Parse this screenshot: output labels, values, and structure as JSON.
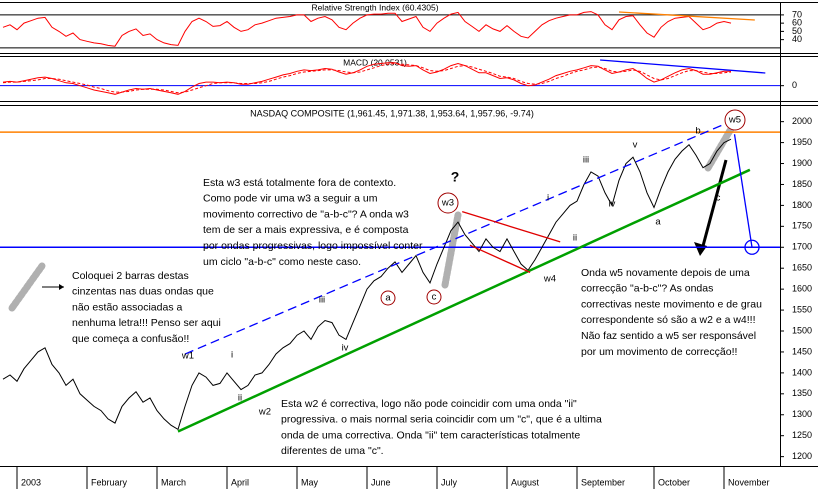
{
  "chart_data": [
    {
      "type": "line",
      "title": "Relative Strength Index (60.4305)",
      "series": [
        {
          "color": "#ff0000",
          "values": [
            55,
            58,
            52,
            60,
            63,
            66,
            67,
            55,
            50,
            44,
            48,
            40,
            38,
            36,
            35,
            33,
            32,
            45,
            50,
            53,
            45,
            47,
            40,
            36,
            34,
            33,
            50,
            62,
            66,
            62,
            56,
            57,
            62,
            55,
            50,
            52,
            58,
            60,
            63,
            66,
            67,
            68,
            70,
            70,
            62,
            66,
            68,
            64,
            55,
            52,
            60,
            66,
            70,
            71,
            71,
            72,
            72,
            62,
            65,
            68,
            55,
            50,
            60,
            66,
            71,
            73,
            62,
            56,
            50,
            58,
            53,
            50,
            57,
            50,
            44,
            42,
            50,
            58,
            63,
            66,
            68,
            70,
            70,
            73,
            74,
            70,
            58,
            52,
            64,
            68,
            69,
            58,
            48,
            43,
            55,
            62,
            66,
            67,
            68,
            60,
            52,
            55,
            60,
            62,
            60
          ]
        }
      ],
      "ylim": [
        25,
        82
      ],
      "yticks": [
        70,
        60,
        50,
        40
      ],
      "hlines": [
        {
          "value": 70,
          "color": "#000000"
        },
        {
          "value": 30,
          "color": "#000000"
        }
      ],
      "trendlines": [
        {
          "x": [
            88,
            107.4
          ],
          "y": [
            73.5,
            63.8
          ],
          "color": "#ff8000"
        }
      ]
    },
    {
      "type": "line",
      "title": "MACD (20.0531)",
      "series": [
        {
          "color": "#ff0000",
          "values": [
            5,
            6,
            5,
            7,
            9,
            11,
            12,
            10,
            7,
            4,
            3,
            0,
            -3,
            -6,
            -8,
            -10,
            -12,
            -9,
            -6,
            -4,
            -5,
            -4,
            -6,
            -8,
            -10,
            -12,
            -8,
            -2,
            3,
            5,
            5,
            4,
            5,
            4,
            2,
            2,
            4,
            6,
            9,
            12,
            15,
            17,
            20,
            22,
            21,
            22,
            24,
            23,
            19,
            16,
            18,
            22,
            27,
            30,
            31,
            32,
            32,
            28,
            27,
            28,
            22,
            17,
            19,
            23,
            28,
            31,
            28,
            23,
            18,
            18,
            14,
            10,
            11,
            8,
            3,
            0,
            1,
            5,
            9,
            14,
            17,
            20,
            22,
            25,
            28,
            27,
            22,
            17,
            19,
            22,
            24,
            18,
            10,
            5,
            8,
            13,
            18,
            22,
            24,
            21,
            16,
            16,
            18,
            20,
            20
          ]
        },
        {
          "color": "#ff0000",
          "dashed": true,
          "values": [
            4,
            5,
            5,
            6,
            7,
            8,
            10,
            10,
            9,
            7,
            5,
            3,
            1,
            -2,
            -4,
            -7,
            -9,
            -9,
            -8,
            -6,
            -5,
            -5,
            -5,
            -6,
            -8,
            -10,
            -9,
            -6,
            -3,
            0,
            3,
            4,
            4,
            4,
            3,
            3,
            3,
            4,
            6,
            9,
            12,
            14,
            17,
            19,
            20,
            21,
            22,
            22,
            21,
            19,
            18,
            19,
            22,
            25,
            28,
            30,
            31,
            30,
            29,
            28,
            25,
            21,
            20,
            21,
            24,
            27,
            28,
            26,
            23,
            20,
            17,
            13,
            12,
            10,
            6,
            3,
            2,
            3,
            6,
            10,
            13,
            17,
            20,
            22,
            25,
            26,
            24,
            20,
            19,
            20,
            22,
            20,
            15,
            10,
            8,
            10,
            14,
            18,
            21,
            21,
            19,
            17,
            17,
            18,
            19
          ]
        }
      ],
      "ylim": [
        -20,
        40
      ],
      "yticks": [
        0
      ],
      "hlines": [
        {
          "value": 0,
          "color": "#0000ff"
        }
      ],
      "trendlines": [
        {
          "x": [
            85.3,
            108.9
          ],
          "y": [
            35.8,
            17.7
          ],
          "color": "#0000ff"
        }
      ]
    },
    {
      "type": "line",
      "title": "NASDAQ COMPOSITE (1,961.45, 1,971.38, 1,953.64, 1,957.96, -9.74)",
      "series": [
        {
          "color": "#000000",
          "values": [
            1385,
            1395,
            1380,
            1410,
            1430,
            1450,
            1460,
            1420,
            1400,
            1370,
            1385,
            1350,
            1335,
            1320,
            1310,
            1290,
            1280,
            1320,
            1340,
            1355,
            1330,
            1340,
            1310,
            1290,
            1275,
            1265,
            1320,
            1370,
            1400,
            1390,
            1370,
            1375,
            1400,
            1380,
            1360,
            1370,
            1395,
            1400,
            1420,
            1445,
            1460,
            1470,
            1490,
            1500,
            1480,
            1510,
            1525,
            1520,
            1490,
            1480,
            1520,
            1560,
            1600,
            1620,
            1630,
            1650,
            1665,
            1640,
            1660,
            1680,
            1640,
            1615,
            1660,
            1700,
            1740,
            1760,
            1730,
            1710,
            1690,
            1720,
            1700,
            1690,
            1720,
            1690,
            1660,
            1645,
            1670,
            1700,
            1730,
            1760,
            1780,
            1800,
            1810,
            1850,
            1880,
            1870,
            1830,
            1800,
            1860,
            1900,
            1915,
            1880,
            1830,
            1795,
            1840,
            1880,
            1910,
            1930,
            1945,
            1920,
            1890,
            1900,
            1930,
            1950,
            1958
          ]
        }
      ],
      "xlim": [
        0,
        111
      ],
      "ylim": [
        1180,
        2035
      ],
      "yticks": [
        1200,
        1250,
        1300,
        1350,
        1400,
        1450,
        1500,
        1550,
        1600,
        1650,
        1700,
        1750,
        1800,
        1850,
        1900,
        1950,
        2000
      ],
      "xticks": [
        {
          "value": 2,
          "label": "2003"
        },
        {
          "value": 12,
          "label": "February"
        },
        {
          "value": 22,
          "label": "March"
        },
        {
          "value": 32,
          "label": "April"
        },
        {
          "value": 42,
          "label": "May"
        },
        {
          "value": 52,
          "label": "June"
        },
        {
          "value": 62,
          "label": "July"
        },
        {
          "value": 72,
          "label": "August"
        },
        {
          "value": 82,
          "label": "September"
        },
        {
          "value": 93,
          "label": "October"
        },
        {
          "value": 103,
          "label": "November"
        }
      ],
      "hlines": [
        {
          "value": 1975,
          "color": "#ff8000"
        },
        {
          "value": 1700,
          "color": "#0000ff"
        }
      ],
      "trendlines": [
        {
          "x": [
            25,
            106.7
          ],
          "y": [
            1260,
            1885
          ],
          "color": "#00a000"
        },
        {
          "x": [
            26,
            103.9
          ],
          "y": [
            1445,
            2000
          ],
          "color": "#0000ff",
          "dashed": true
        },
        {
          "x": [
            65.6,
            79.6
          ],
          "y": [
            1785,
            1713
          ],
          "color": "#e00000"
        },
        {
          "x": [
            66.7,
            75.3
          ],
          "y": [
            1705,
            1640
          ],
          "color": "#e00000"
        },
        {
          "x": [
            104.5,
            107
          ],
          "y": [
            1970,
            1700
          ],
          "color": "#0000ff"
        }
      ],
      "wave_labels": [
        "w1",
        "i",
        "ii",
        "w2",
        "iii",
        "iv",
        "a",
        "c",
        "w3",
        "?",
        "w4",
        "i",
        "ii",
        "iii",
        "iv",
        "v",
        "a",
        "b",
        "c",
        "w5"
      ],
      "annotations": [
        [
          "Esta w3 está totalmente fora de contexto.",
          "Como pode vir uma w3 a seguir a um",
          "movimento correctivo de \"a-b-c\"? A onda w3",
          "tem de ser a mais expressiva, e é composta",
          "por ondas progressivas, logo impossível conter",
          "um ciclo \"a-b-c\" como neste caso."
        ],
        [
          "Coloquei 2 barras destas",
          "cinzentas nas duas ondas que",
          "não estão associadas a",
          "nenhuma letra!!! Penso ser aqui",
          "que começa a confusão!!"
        ],
        [
          "Onda w5 novamente depois de uma",
          "correcção \"a-b-c\"? As ondas",
          "correctivas neste movimento e de grau",
          "correspondente só são a w2 e a w4!!!",
          "Não faz sentido a w5 ser responsável",
          "por um movimento de correcção!!"
        ],
        [
          "Esta w2 é correctiva, logo não pode coincidir com uma onda \"ii\"",
          "progressiva. o mais normal seria coincidir com um \"c\", que é a ultima",
          "onda de uma correctiva. Onda \"ii\" tem características totalmente",
          "diferentes de uma \"c\"."
        ]
      ]
    }
  ]
}
